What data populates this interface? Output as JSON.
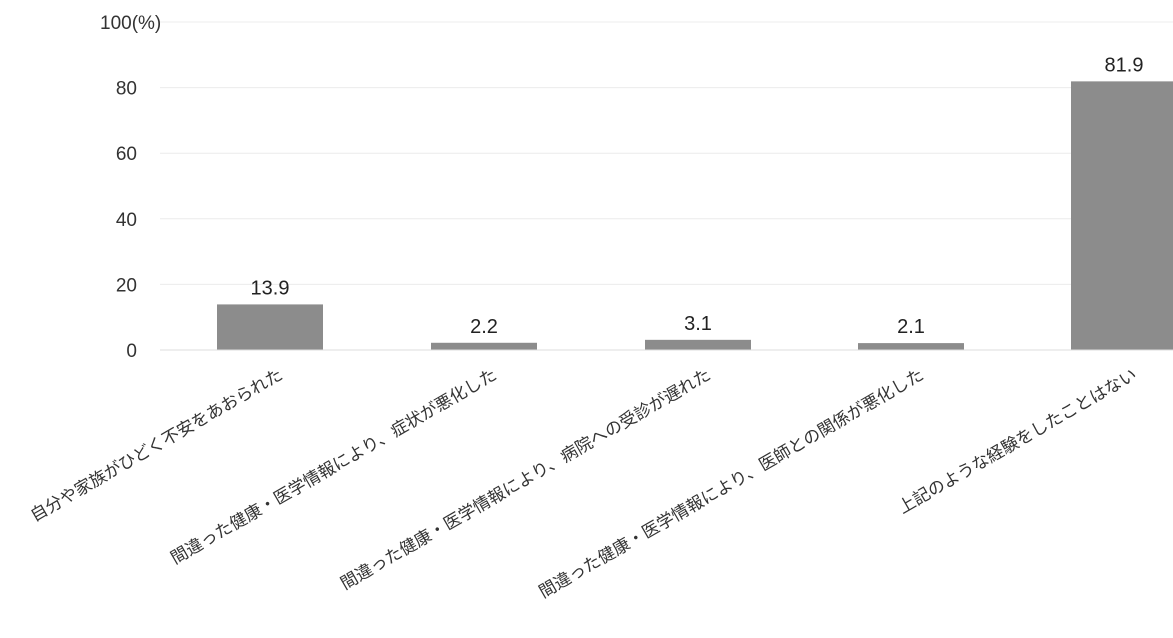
{
  "chart_data": {
    "type": "bar",
    "title": "",
    "xlabel": "",
    "ylabel": "",
    "unit": "(%)",
    "ylim": [
      0,
      100
    ],
    "yticks": [
      0,
      20,
      40,
      60,
      80,
      100
    ],
    "grid": true,
    "legend": "none",
    "bar_color": "#8c8c8c",
    "categories": [
      "自分や家族がひどく不安をあおられた",
      "間違った健康・医学情報により、症状が悪化した",
      "間違った健康・医学情報により、病院への受診が遅れた",
      "間違った健康・医学情報により、医師との関係が悪化した",
      "上記のような経験をしたことはない"
    ],
    "values": [
      13.9,
      2.2,
      3.1,
      2.1,
      81.9
    ],
    "value_labels": [
      "13.9",
      "2.2",
      "3.1",
      "2.1",
      "81.9"
    ]
  }
}
